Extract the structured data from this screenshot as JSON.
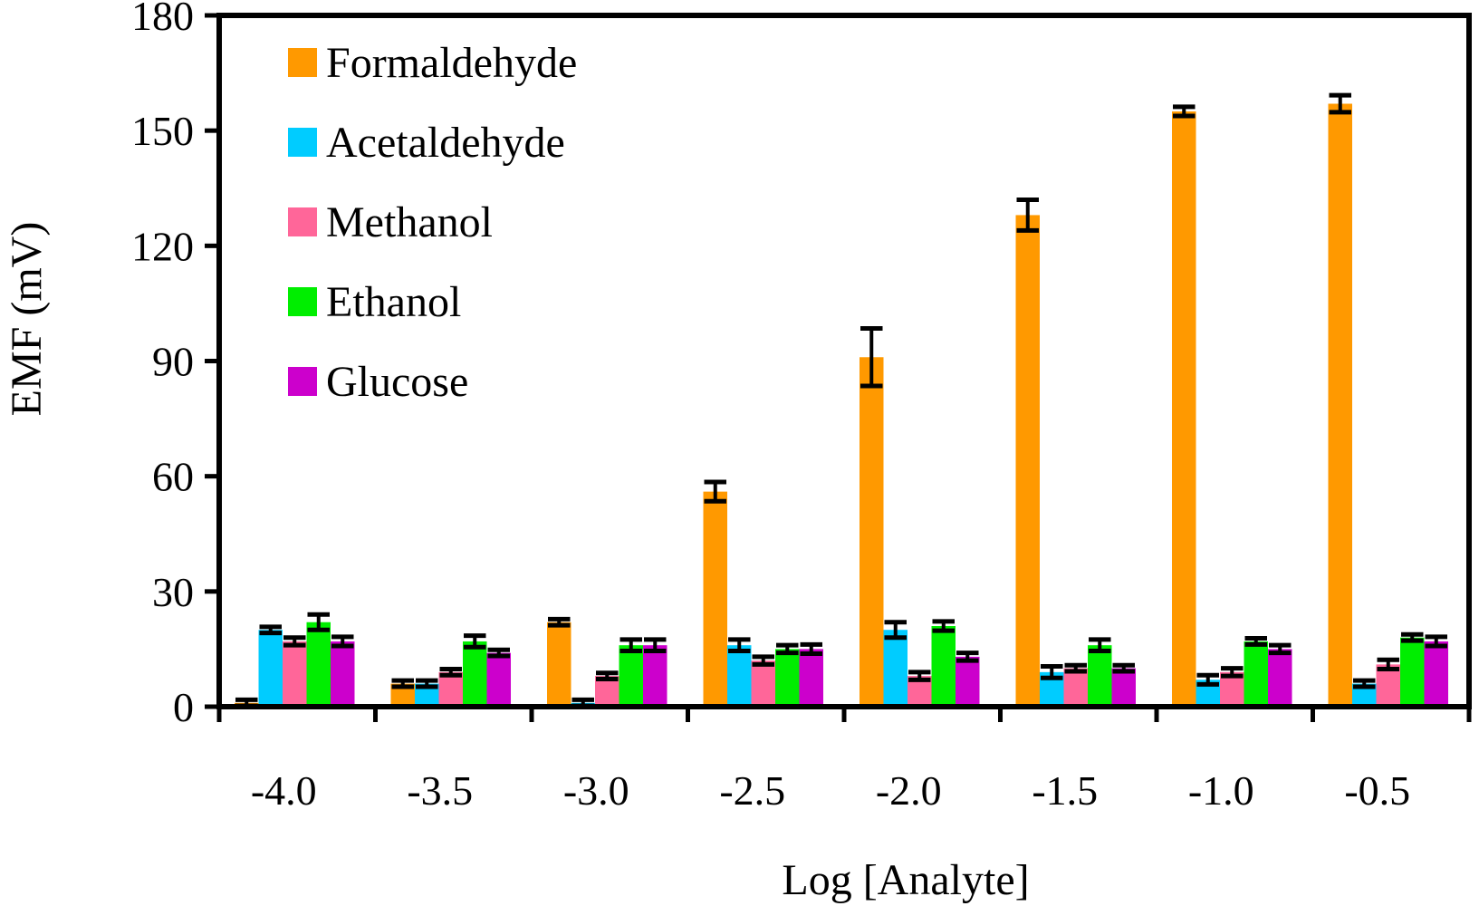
{
  "chart_data": {
    "type": "bar",
    "title": "",
    "xlabel": "Log [Analyte]",
    "ylabel": "EMF (mV)",
    "ylim": [
      0,
      180
    ],
    "yticks": [
      0,
      30,
      60,
      90,
      120,
      150,
      180
    ],
    "grid": false,
    "legend_position": "top-left",
    "categories": [
      "-4.0",
      "-3.5",
      "-3.0",
      "-2.5",
      "-2.0",
      "-1.5",
      "-1.0",
      "-0.5"
    ],
    "series": [
      {
        "name": "Formaldehyde",
        "color": "#FF9900",
        "values": [
          1,
          6,
          22,
          56,
          91,
          128,
          155,
          157
        ],
        "errors": [
          0.8,
          0.8,
          0.8,
          2.5,
          7.5,
          4,
          1.2,
          2.2
        ]
      },
      {
        "name": "Acetaldehyde",
        "color": "#00CCFF",
        "values": [
          20,
          6,
          1,
          16,
          20,
          9,
          7,
          6
        ],
        "errors": [
          0.8,
          0.8,
          0.8,
          1.5,
          2,
          1.5,
          1.2,
          0.8
        ]
      },
      {
        "name": "Methanol",
        "color": "#FF6699",
        "values": [
          17,
          9,
          8,
          12,
          8,
          10,
          9,
          11
        ],
        "errors": [
          1,
          0.8,
          0.8,
          1,
          1,
          0.8,
          1,
          1.2
        ]
      },
      {
        "name": "Ethanol",
        "color": "#00EE00",
        "values": [
          22,
          17,
          16,
          15,
          21,
          16,
          17,
          18
        ],
        "errors": [
          2,
          1.5,
          1.5,
          1,
          1.2,
          1.5,
          0.8,
          0.8
        ]
      },
      {
        "name": "Glucose",
        "color": "#CC00CC",
        "values": [
          17,
          14,
          16,
          15,
          13,
          10,
          15,
          17
        ],
        "errors": [
          1.2,
          0.8,
          1.5,
          1.2,
          1,
          0.8,
          1,
          1.2
        ]
      }
    ]
  }
}
